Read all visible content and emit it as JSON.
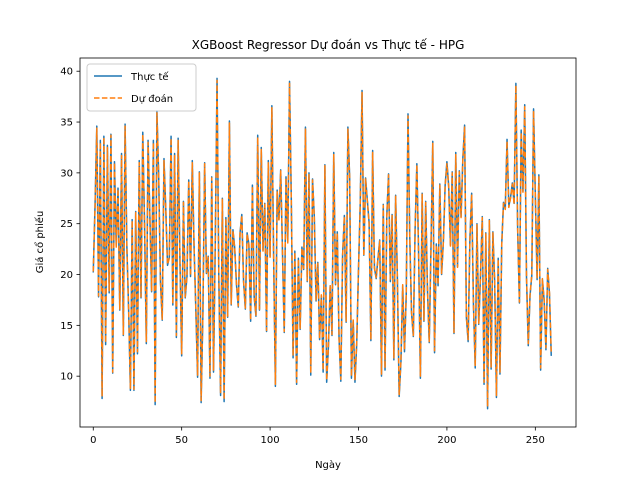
{
  "chart_data": {
    "type": "line",
    "title": "XGBoost Regressor Dự đoán vs Thực tế - HPG",
    "xlabel": "Ngày",
    "ylabel": "Giá cổ phiếu",
    "xlim": [
      -7.5,
      273
    ],
    "ylim": [
      5.0,
      41.3
    ],
    "xticks": [
      0,
      50,
      100,
      150,
      200,
      250
    ],
    "yticks": [
      10,
      15,
      20,
      25,
      30,
      35,
      40
    ],
    "grid": false,
    "legend_position": "top-left",
    "series": [
      {
        "name": "Thực tế",
        "color": "#1f77b4",
        "style": "solid",
        "values": [
          20.2,
          26.8,
          34.6,
          17.8,
          33.2,
          7.8,
          33.6,
          13.1,
          32.7,
          18.2,
          33.8,
          10.3,
          31.1,
          22.8,
          28.5,
          16.5,
          31.9,
          14.0,
          34.8,
          22.8,
          16.5,
          8.6,
          25.4,
          8.6,
          26.2,
          12.2,
          31.2,
          17.7,
          34.0,
          25.0,
          13.2,
          33.2,
          25.9,
          18.3,
          33.2,
          7.2,
          36.1,
          29.7,
          19.3,
          15.5,
          31.4,
          26.5,
          20.9,
          21.7,
          33.6,
          17.0,
          31.9,
          13.8,
          33.4,
          21.6,
          12.0,
          27.2,
          17.7,
          19.8,
          29.3,
          19.8,
          31.2,
          22.8,
          16.6,
          9.9,
          30.1,
          7.4,
          16.1,
          31.0,
          20.1,
          21.8,
          9.8,
          29.6,
          10.4,
          23.0,
          39.3,
          19.7,
          8.1,
          27.5,
          7.5,
          25.6,
          15.8,
          35.1,
          17.0,
          24.4,
          22.6,
          19.0,
          16.8,
          24.1,
          25.9,
          19.3,
          16.6,
          24.1,
          23.0,
          15.4,
          28.8,
          17.8,
          15.9,
          33.7,
          16.5,
          32.5,
          22.4,
          27.0,
          14.4,
          31.2,
          21.8,
          36.6,
          21.8,
          9.0,
          28.3,
          25.4,
          30.3,
          22.3,
          14.3,
          29.6,
          23.2,
          39.0,
          27.3,
          11.8,
          22.3,
          9.2,
          21.6,
          14.6,
          22.7,
          20.5,
          34.5,
          19.3,
          30.0,
          10.1,
          29.4,
          25.7,
          17.4,
          21.2,
          13.6,
          17.9,
          10.4,
          30.8,
          9.4,
          12.9,
          18.9,
          14.0,
          32.0,
          19.0,
          24.2,
          13.7,
          9.5,
          21.9,
          25.8,
          15.3,
          34.5,
          29.6,
          9.8,
          15.5,
          9.4,
          13.2,
          20.5,
          27.1,
          38.1,
          21.9,
          29.5,
          27.3,
          25.1,
          13.5,
          32.2,
          20.7,
          19.6,
          21.6,
          23.4,
          10.0,
          26.9,
          10.6,
          25.8,
          29.9,
          19.3,
          25.9,
          11.6,
          27.8,
          19.5,
          8.0,
          11.4,
          18.9,
          12.4,
          18.0,
          35.8,
          23.6,
          16.2,
          13.9,
          24.4,
          30.9,
          22.0,
          9.8,
          28.0,
          15.4,
          27.2,
          18.5,
          13.3,
          22.8,
          33.1,
          12.3,
          23.0,
          18.9,
          28.9,
          20.0,
          23.3,
          28.8,
          31.1,
          28.7,
          22.9,
          30.1,
          14.2,
          32.0,
          20.8,
          30.2,
          25.7,
          31.4,
          34.7,
          15.8,
          13.4,
          23.5,
          28.0,
          17.1,
          10.8,
          25.0,
          15.1,
          19.9,
          25.7,
          9.2,
          24.1,
          6.8,
          25.4,
          10.7,
          24.2,
          19.3,
          7.9,
          21.6,
          10.2,
          23.0,
          27.1,
          26.5,
          33.3,
          26.7,
          27.6,
          29.0,
          27.0,
          38.8,
          24.5,
          17.2,
          34.2,
          28.2,
          36.7,
          19.8,
          13.0,
          17.9,
          19.9,
          36.3,
          27.8,
          19.5,
          29.8,
          10.6,
          19.5,
          17.4,
          12.6,
          20.6,
          18.1,
          12.0
        ]
      },
      {
        "name": "Dự đoán",
        "color": "#ff7f0e",
        "style": "dashed",
        "values": [
          20.3,
          26.6,
          34.4,
          17.9,
          33.0,
          8.0,
          33.5,
          13.3,
          32.5,
          18.4,
          33.7,
          10.4,
          31.0,
          22.7,
          28.4,
          16.6,
          31.7,
          14.1,
          34.6,
          22.6,
          16.7,
          8.8,
          25.3,
          8.7,
          26.1,
          12.4,
          31.0,
          17.8,
          33.8,
          24.9,
          13.4,
          33.0,
          25.8,
          18.4,
          33.0,
          7.4,
          35.9,
          29.6,
          19.4,
          15.6,
          31.2,
          26.4,
          21.0,
          21.6,
          33.4,
          17.1,
          31.7,
          14.0,
          33.2,
          21.5,
          12.2,
          27.1,
          17.8,
          19.9,
          29.2,
          19.9,
          31.0,
          22.7,
          16.7,
          10.1,
          30.0,
          7.6,
          16.2,
          30.9,
          20.2,
          21.7,
          10.0,
          29.5,
          10.6,
          22.9,
          39.1,
          19.8,
          8.3,
          27.4,
          7.7,
          25.5,
          15.9,
          34.9,
          17.1,
          24.3,
          22.5,
          19.1,
          16.9,
          24.0,
          25.8,
          19.4,
          16.7,
          24.0,
          22.9,
          15.5,
          28.7,
          17.9,
          16.0,
          33.5,
          16.6,
          32.3,
          22.3,
          26.9,
          14.5,
          31.0,
          21.7,
          36.4,
          21.7,
          9.2,
          28.2,
          25.3,
          30.2,
          22.2,
          14.4,
          29.5,
          23.1,
          38.8,
          27.2,
          12.0,
          22.2,
          9.4,
          21.5,
          14.7,
          22.6,
          20.6,
          34.3,
          19.4,
          29.9,
          10.3,
          29.3,
          25.6,
          17.5,
          21.1,
          13.7,
          18.0,
          10.6,
          30.7,
          9.6,
          13.0,
          19.0,
          14.1,
          31.8,
          19.1,
          24.1,
          13.8,
          9.7,
          21.8,
          25.7,
          15.4,
          34.3,
          29.5,
          10.0,
          15.6,
          9.6,
          13.4,
          20.6,
          27.0,
          37.9,
          21.8,
          29.4,
          27.2,
          25.0,
          13.6,
          32.0,
          20.6,
          19.7,
          21.5,
          23.3,
          10.2,
          26.8,
          10.8,
          25.7,
          29.8,
          19.4,
          25.8,
          11.8,
          27.7,
          19.6,
          8.2,
          11.6,
          19.0,
          12.6,
          18.1,
          35.6,
          23.5,
          16.3,
          14.0,
          24.3,
          30.8,
          21.9,
          10.0,
          27.9,
          15.5,
          27.1,
          18.6,
          13.4,
          22.7,
          32.9,
          12.5,
          22.9,
          19.0,
          28.8,
          20.1,
          23.2,
          28.7,
          30.9,
          28.6,
          22.8,
          30.0,
          14.3,
          31.8,
          20.7,
          30.1,
          25.6,
          31.2,
          34.5,
          15.9,
          13.6,
          23.4,
          27.9,
          17.2,
          11.0,
          24.9,
          15.2,
          20.0,
          25.6,
          9.4,
          24.0,
          7.0,
          25.3,
          10.9,
          24.1,
          19.4,
          8.1,
          21.5,
          10.4,
          22.9,
          27.0,
          26.4,
          33.1,
          26.6,
          27.5,
          28.9,
          26.9,
          38.6,
          24.4,
          17.3,
          34.0,
          28.1,
          36.5,
          19.9,
          13.2,
          18.0,
          20.0,
          36.1,
          27.7,
          19.6,
          29.7,
          10.8,
          19.6,
          17.5,
          12.8,
          20.5,
          18.2,
          12.2
        ]
      }
    ]
  }
}
